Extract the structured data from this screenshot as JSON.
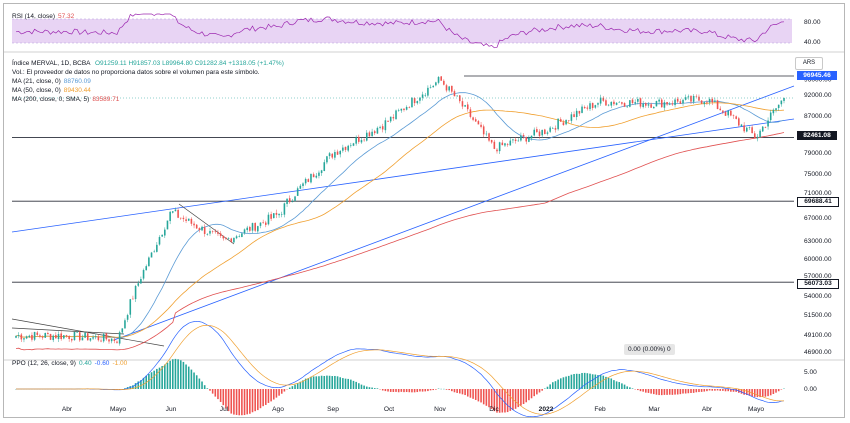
{
  "header": {
    "symbol_line": "Índice MERVAL, 1D, BCBA",
    "ohlc": "O91259.11  H91857.03  L89964.80  C91282.84  +1318.05 (+1.47%)",
    "vol_line": "Vol.: El proveedor de datos no proporciona datos sobre el volumen para este símbolo.",
    "ma21_label": "MA (21, close, 0)",
    "ma21_value": "88760.09",
    "ma50_label": "MA (50, close, 0)",
    "ma50_value": "89430.44",
    "ma200_label": "MA (200, close, 0, SMA, 5)",
    "ma200_value": "83589.71",
    "currency": "ARS"
  },
  "rsi": {
    "label": "RSI (14, close)",
    "value": "57.32",
    "ticks": [
      "80.00",
      "40.00"
    ],
    "last": 57.32
  },
  "ppo": {
    "label": "PPO (12, 26, close, 9)",
    "v1": "0.40",
    "v2": "-0.60",
    "v3": "-1.00",
    "ticks": [
      "5.00",
      "0.00"
    ]
  },
  "zero_box": "0.00 (0.00%) 0",
  "colors": {
    "ma21": "#5b9bd5",
    "ma50": "#f0a030",
    "ma200": "#e05050",
    "up": "#26a69a",
    "down": "#ef5350",
    "trend": "#2962ff",
    "rsi": "#9c27b0",
    "rsi_band": "#e8d4f4",
    "hline": "#2a2e39"
  },
  "chart_data": {
    "type": "candlestick",
    "title": "Índice MERVAL, 1D, BCBA",
    "x_months": [
      "Abr",
      "Mayo",
      "Jun",
      "Jul",
      "Ago",
      "Sep",
      "Oct",
      "Nov",
      "Dic",
      "2022",
      "Feb",
      "Mar",
      "Abr",
      "Mayo"
    ],
    "price_ticks": [
      "96000.00",
      "92000.00",
      "87000.00",
      "83000.00",
      "79000.00",
      "75000.00",
      "71000.00",
      "67000.00",
      "63000.00",
      "60000.00",
      "57000.00",
      "54000.00",
      "51500.00",
      "49100.00",
      "46900.00"
    ],
    "horizontal_levels": [
      {
        "price": 96945.46,
        "label": "96945.46",
        "style": "blue"
      },
      {
        "price": 82461.08,
        "label": "82461.08",
        "style": "dark"
      },
      {
        "price": 69688.41,
        "label": "69688.41",
        "style": "outline"
      },
      {
        "price": 56073.03,
        "label": "56073.03",
        "style": "outline"
      }
    ],
    "current_price": 91282.84,
    "close_path": [
      [
        "Abr",
        49000
      ],
      [
        "Mayo",
        48500
      ],
      [
        "Jun",
        68000
      ],
      [
        "Jul",
        63000
      ],
      [
        "Ago",
        67500
      ],
      [
        "Sep",
        79000
      ],
      [
        "Oct",
        86000
      ],
      [
        "Nov",
        96000
      ],
      [
        "Dic",
        80000
      ],
      [
        "2022",
        84000
      ],
      [
        "Feb",
        90500
      ],
      [
        "Mar",
        90000
      ],
      [
        "Abr",
        91000
      ],
      [
        "Mayo",
        82500
      ],
      [
        "end",
        91282.84
      ]
    ],
    "series": [
      {
        "name": "MA (21, close, 0)",
        "last": 88760.09
      },
      {
        "name": "MA (50, close, 0)",
        "last": 89430.44
      },
      {
        "name": "MA (200, close, 0, SMA, 5)",
        "last": 83589.71
      }
    ]
  }
}
